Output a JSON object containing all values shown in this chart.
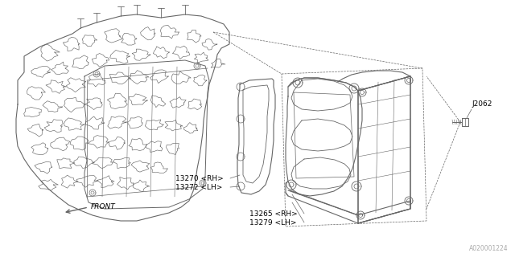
{
  "bg_color": "#ffffff",
  "line_color": "#666666",
  "text_color": "#000000",
  "label_J2062": "J2062",
  "label_13270": "13270 <RH>",
  "label_13272": "13272 <LH>",
  "label_13265": "13265 <RH>",
  "label_13279": "13279 <LH>",
  "watermark": "A020001224",
  "font_size": 6.5,
  "line_width": 0.7
}
